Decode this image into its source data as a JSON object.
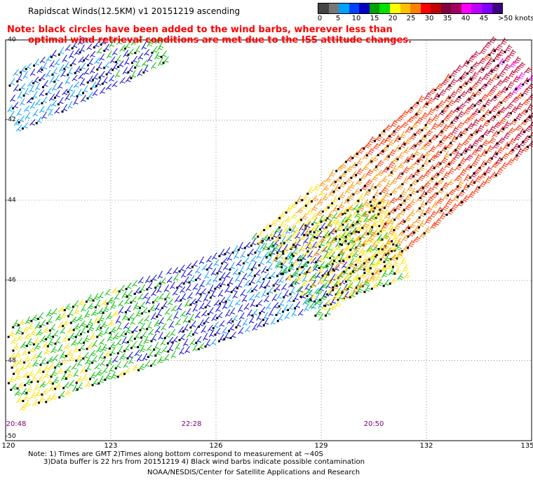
{
  "header": {
    "title": "Rapidscat Winds(12.5KM) v1 20151219 ascending",
    "note_line1": "Note: black circles have been added to the wind barbs, wherever less than",
    "note_line2": "optimal wind retrieval conditions are met due to the ISS attitude changes."
  },
  "colorbar": {
    "labels": [
      "0",
      "5",
      "10",
      "15",
      "20",
      "25",
      "30",
      "35",
      "40",
      "45",
      ">50 knots"
    ],
    "colors": [
      "#444444",
      "#777777",
      "#00a0ff",
      "#0040ff",
      "#0000c0",
      "#00a000",
      "#00e000",
      "#ffff00",
      "#ffc000",
      "#ff8000",
      "#ff0000",
      "#c00000",
      "#800040",
      "#a00060",
      "#ff00ff",
      "#c000ff",
      "#8000ff",
      "#400080"
    ],
    "speed_color_stops": [
      {
        "max": 5,
        "color": "#555555"
      },
      {
        "max": 10,
        "color": "#00a0ff"
      },
      {
        "max": 15,
        "color": "#0000e0"
      },
      {
        "max": 20,
        "color": "#00c000"
      },
      {
        "max": 25,
        "color": "#ffe000"
      },
      {
        "max": 30,
        "color": "#ff9000"
      },
      {
        "max": 35,
        "color": "#ff3000"
      },
      {
        "max": 40,
        "color": "#c00030"
      },
      {
        "max": 45,
        "color": "#ff00ff"
      },
      {
        "max": 999,
        "color": "#8000ff"
      }
    ]
  },
  "map": {
    "lat_labels": [
      "-40",
      "-42",
      "-44",
      "-46",
      "-48",
      "-50"
    ],
    "lat_values": [
      -40,
      -42,
      -44,
      -46,
      -48,
      -50
    ],
    "lon_labels": [
      "120",
      "123",
      "126",
      "129",
      "132",
      "135"
    ],
    "lon_values": [
      120,
      123,
      126,
      129,
      132,
      135
    ],
    "lon_range": [
      120,
      135
    ],
    "lat_range": [
      -40,
      -50
    ],
    "grid": "dotted",
    "time_labels": [
      {
        "text": "20:48",
        "lon": 120.3
      },
      {
        "text": "22:28",
        "lon": 125.3
      },
      {
        "text": "20:50",
        "lon": 130.5
      }
    ],
    "swaths": [
      {
        "name": "upper-left",
        "lon_start": 120,
        "lon_end": 124.2,
        "lat_start": -41.7,
        "lat_end": -40.0,
        "width_deg": 1.3,
        "speeds": [
          8,
          9,
          10,
          12,
          14,
          18
        ]
      },
      {
        "name": "main-left",
        "lon_start": 120,
        "lon_end": 131,
        "lat_start": -48.3,
        "lat_end": -45.0,
        "width_deg": 2.0,
        "speeds": [
          22,
          20,
          18,
          16,
          12,
          10,
          9,
          18,
          22
        ]
      },
      {
        "name": "main-right",
        "lon_start": 128,
        "lon_end": 134.9,
        "lat_start": -46.0,
        "lat_end": -41.0,
        "width_deg": 2.6,
        "speeds": [
          20,
          24,
          27,
          30,
          33,
          36,
          38
        ]
      }
    ],
    "flag_fraction": 0.45
  },
  "footer": {
    "line1": "Note: 1) Times are GMT 2)Times along bottom correspond to measurement at ~40S",
    "line2": "3)Data buffer is 22 hrs from 20151219 4) Black wind barbs indicate possible contamination",
    "line3": "NOAA/NESDIS/Center for Satellite Applications and Research"
  }
}
